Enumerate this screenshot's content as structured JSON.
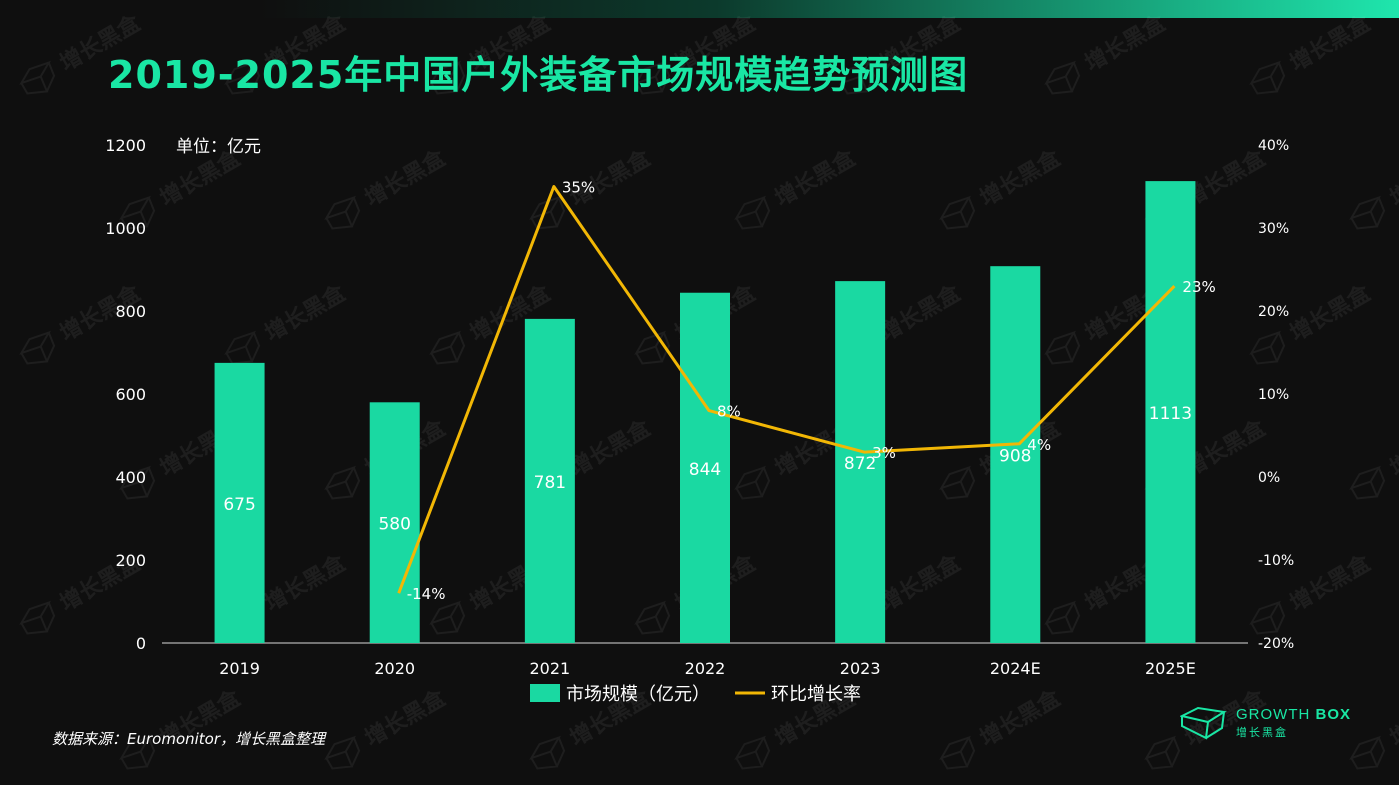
{
  "title": "2019-2025年中国户外装备市场规模趋势预测图",
  "source_note": "数据来源：Euromonitor，增长黑盒整理",
  "logo": {
    "brand": "GROWTH BOX",
    "brand_part1": "GROWTH",
    "brand_part2": " BOX",
    "subtitle": "增长黑盒"
  },
  "watermark_text": "增长黑盒",
  "colors": {
    "bar": "#1ad9a2",
    "line": "#f2b705",
    "title": "#19e6a4",
    "background": "#0f0f0f"
  },
  "chart_data": {
    "type": "bar",
    "categories": [
      "2019",
      "2020",
      "2021",
      "2022",
      "2023",
      "2024E",
      "2025E"
    ],
    "unit_label": "单位：亿元",
    "series": [
      {
        "name": "市场规模（亿元）",
        "type": "bar",
        "axis": "left",
        "values": [
          675,
          580,
          781,
          844,
          872,
          908,
          1113
        ],
        "labels": [
          "675",
          "580",
          "781",
          "844",
          "872",
          "908",
          "1113"
        ]
      },
      {
        "name": "环比增长率",
        "type": "line",
        "axis": "right",
        "values": [
          null,
          -14,
          35,
          8,
          3,
          4,
          23
        ],
        "labels": [
          "",
          "-14%",
          "35%",
          "8%",
          "3%",
          "4%",
          "23%"
        ]
      }
    ],
    "y_left": {
      "range": [
        0,
        1200
      ],
      "ticks": [
        "0",
        "200",
        "400",
        "600",
        "800",
        "1000",
        "1200"
      ]
    },
    "y_right": {
      "range": [
        -20,
        40
      ],
      "ticks": [
        "-20%",
        "-10%",
        "0%",
        "10%",
        "20%",
        "30%",
        "40%"
      ]
    },
    "legend": {
      "position": "bottom"
    },
    "grid": false
  }
}
